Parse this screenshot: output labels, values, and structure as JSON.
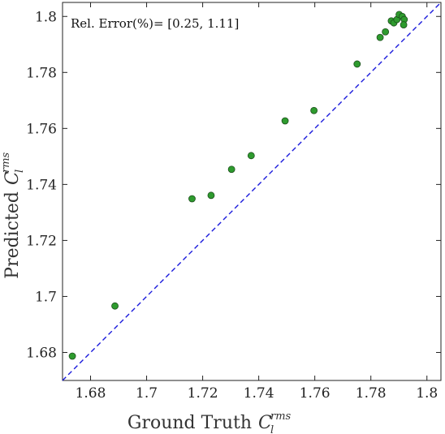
{
  "chart_data": {
    "type": "scatter",
    "xlabel": "Ground Truth",
    "ylabel": "Predicted",
    "axis_variable": {
      "symbol": "C",
      "subscript": "l",
      "superscript": "rms"
    },
    "annotation": "Rel. Error(%)= [0.25, 1.11]",
    "xlim": [
      1.67,
      1.805
    ],
    "ylim": [
      1.67,
      1.805
    ],
    "xticks": [
      1.68,
      1.7,
      1.72,
      1.74,
      1.76,
      1.78,
      1.8
    ],
    "yticks": [
      1.68,
      1.7,
      1.72,
      1.74,
      1.76,
      1.78,
      1.8
    ],
    "xtick_labels": [
      "1.68",
      "1.7",
      "1.72",
      "1.74",
      "1.76",
      "1.78",
      "1.8"
    ],
    "ytick_labels": [
      "1.68",
      "1.7",
      "1.72",
      "1.74",
      "1.76",
      "1.78",
      "1.8"
    ],
    "reference_line": {
      "style": "dashed",
      "color": "#1a1adc",
      "from": [
        1.67,
        1.67
      ],
      "to": [
        1.805,
        1.805
      ]
    },
    "marker_color": "#2e9b2e",
    "points": [
      {
        "x": 1.6735,
        "y": 1.6787
      },
      {
        "x": 1.6887,
        "y": 1.6966
      },
      {
        "x": 1.7162,
        "y": 1.7349
      },
      {
        "x": 1.723,
        "y": 1.7361
      },
      {
        "x": 1.7303,
        "y": 1.7454
      },
      {
        "x": 1.7373,
        "y": 1.7503
      },
      {
        "x": 1.7494,
        "y": 1.7627
      },
      {
        "x": 1.7597,
        "y": 1.7664
      },
      {
        "x": 1.7751,
        "y": 1.783
      },
      {
        "x": 1.7833,
        "y": 1.7925
      },
      {
        "x": 1.7852,
        "y": 1.7945
      },
      {
        "x": 1.7873,
        "y": 1.7984
      },
      {
        "x": 1.7882,
        "y": 1.7977
      },
      {
        "x": 1.7893,
        "y": 1.7989
      },
      {
        "x": 1.7901,
        "y": 1.8007
      },
      {
        "x": 1.7912,
        "y": 1.8
      },
      {
        "x": 1.7919,
        "y": 1.7989
      },
      {
        "x": 1.7917,
        "y": 1.797
      }
    ]
  }
}
